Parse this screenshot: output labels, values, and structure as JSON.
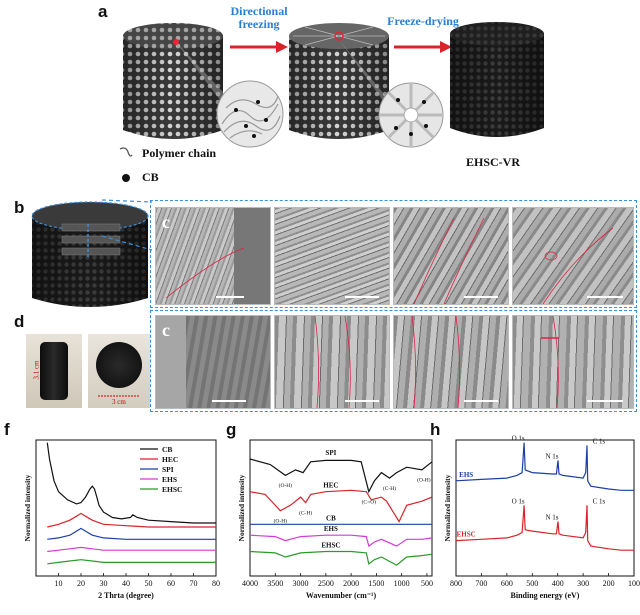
{
  "panels": {
    "a": "a",
    "b": "b",
    "c_top": "c",
    "c_bottom": "c",
    "d": "d",
    "f": "f",
    "g": "g",
    "h": "h"
  },
  "panel_a": {
    "arrow1": [
      "Directional",
      "freezing"
    ],
    "arrow2": "Freeze-drying",
    "legend_polymer": "Polymer chain",
    "legend_cb": "CB",
    "product": "EHSC-VR"
  },
  "panel_d": {
    "height_dim": "3.1 cm",
    "width_dim": "3 cm"
  },
  "colors": {
    "arrow": "#d9232a",
    "arrow_text": "#2a7fd0",
    "dash_box": "#3a8fd8"
  },
  "chart_data": [
    {
      "panel": "f",
      "type": "line",
      "xlabel": "2 Thrta (degree)",
      "ylabel": "Normalized intensity",
      "xlim": [
        0,
        80
      ],
      "xticks": [
        10,
        20,
        30,
        40,
        50,
        60,
        70,
        80
      ],
      "series": [
        {
          "name": "CB",
          "color": "#111111",
          "x": [
            5,
            6,
            8,
            10,
            14,
            18,
            20,
            22,
            24,
            25,
            26,
            27,
            28,
            30,
            34,
            38,
            42,
            43,
            45,
            50,
            60,
            70,
            80
          ],
          "y": [
            0.98,
            0.86,
            0.7,
            0.62,
            0.56,
            0.53,
            0.54,
            0.58,
            0.64,
            0.66,
            0.64,
            0.58,
            0.52,
            0.47,
            0.43,
            0.42,
            0.43,
            0.45,
            0.43,
            0.41,
            0.4,
            0.39,
            0.39
          ]
        },
        {
          "name": "HEC",
          "color": "#d9232a",
          "x": [
            5,
            10,
            15,
            18,
            20,
            22,
            25,
            30,
            40,
            50,
            60,
            70,
            80
          ],
          "y": [
            0.36,
            0.38,
            0.41,
            0.44,
            0.46,
            0.44,
            0.41,
            0.38,
            0.37,
            0.36,
            0.36,
            0.36,
            0.36
          ]
        },
        {
          "name": "SPI",
          "color": "#1b3fa6",
          "x": [
            5,
            10,
            15,
            18,
            20,
            22,
            25,
            30,
            40,
            50,
            60,
            70,
            80
          ],
          "y": [
            0.27,
            0.28,
            0.3,
            0.33,
            0.35,
            0.33,
            0.3,
            0.28,
            0.27,
            0.27,
            0.27,
            0.27,
            0.27
          ]
        },
        {
          "name": "EHS",
          "color": "#d63ad6",
          "x": [
            5,
            10,
            15,
            20,
            25,
            30,
            40,
            50,
            60,
            70,
            80
          ],
          "y": [
            0.18,
            0.19,
            0.2,
            0.21,
            0.2,
            0.19,
            0.19,
            0.19,
            0.19,
            0.19,
            0.19
          ]
        },
        {
          "name": "EHSC",
          "color": "#2a9a2a",
          "x": [
            5,
            10,
            15,
            20,
            25,
            30,
            40,
            50,
            60,
            70,
            80
          ],
          "y": [
            0.09,
            0.1,
            0.11,
            0.12,
            0.11,
            0.1,
            0.1,
            0.1,
            0.1,
            0.1,
            0.1
          ]
        }
      ]
    },
    {
      "panel": "g",
      "type": "line",
      "xlabel": "Wavenumber (cm⁻¹)",
      "ylabel": "Normalized intensity",
      "xlim": [
        4000,
        400
      ],
      "xticks": [
        4000,
        3500,
        3000,
        2500,
        2000,
        1500,
        1000,
        500
      ],
      "annotations": {
        "SPI": [
          "(O-H)",
          "(C=O)",
          "(C-H)",
          "(O-H)"
        ],
        "HEC": [
          "(O-H)",
          "(C-H)"
        ]
      },
      "series": [
        {
          "name": "SPI",
          "color": "#111111",
          "x": [
            4000,
            3600,
            3300,
            3100,
            2950,
            2800,
            2500,
            2000,
            1800,
            1650,
            1540,
            1400,
            1240,
            1100,
            900,
            600,
            400
          ],
          "y": [
            0.86,
            0.82,
            0.74,
            0.78,
            0.76,
            0.84,
            0.85,
            0.85,
            0.84,
            0.62,
            0.7,
            0.76,
            0.72,
            0.76,
            0.8,
            0.78,
            0.84
          ]
        },
        {
          "name": "HEC",
          "color": "#d9232a",
          "x": [
            4000,
            3700,
            3400,
            3200,
            3000,
            2900,
            2800,
            2500,
            2000,
            1700,
            1600,
            1400,
            1300,
            1050,
            900,
            600,
            400
          ],
          "y": [
            0.62,
            0.6,
            0.48,
            0.52,
            0.58,
            0.54,
            0.6,
            0.62,
            0.63,
            0.62,
            0.56,
            0.58,
            0.55,
            0.4,
            0.52,
            0.55,
            0.58
          ]
        },
        {
          "name": "CB",
          "color": "#1b3fa6",
          "x": [
            4000,
            3000,
            2000,
            1000,
            400
          ],
          "y": [
            0.38,
            0.38,
            0.38,
            0.38,
            0.38
          ]
        },
        {
          "name": "EHS",
          "color": "#d63ad6",
          "x": [
            4000,
            3500,
            3300,
            3000,
            2500,
            2000,
            1700,
            1650,
            1540,
            1400,
            1100,
            900,
            600,
            400
          ],
          "y": [
            0.3,
            0.29,
            0.26,
            0.29,
            0.3,
            0.3,
            0.29,
            0.22,
            0.25,
            0.27,
            0.22,
            0.27,
            0.27,
            0.28
          ]
        },
        {
          "name": "EHSC",
          "color": "#2a9a2a",
          "x": [
            4000,
            3500,
            3300,
            3000,
            2500,
            2000,
            1700,
            1650,
            1540,
            1400,
            1100,
            900,
            600,
            400
          ],
          "y": [
            0.18,
            0.17,
            0.14,
            0.17,
            0.18,
            0.18,
            0.17,
            0.09,
            0.12,
            0.14,
            0.08,
            0.14,
            0.15,
            0.16
          ]
        }
      ]
    },
    {
      "panel": "h",
      "type": "line",
      "xlabel": "Binding energy (eV)",
      "ylabel": "Normalized intensity",
      "xlim": [
        800,
        100
      ],
      "xticks": [
        800,
        700,
        600,
        500,
        400,
        300,
        200,
        100
      ],
      "peaks": {
        "EHS": [
          "O 1s",
          "N 1s",
          "C 1s"
        ],
        "EHSC": [
          "O 1s",
          "N 1s",
          "C 1s"
        ]
      },
      "series": [
        {
          "name": "EHS",
          "color": "#1b3fa6",
          "x": [
            800,
            700,
            600,
            560,
            540,
            532,
            528,
            500,
            420,
            405,
            399,
            395,
            380,
            300,
            290,
            285,
            282,
            270,
            200,
            150,
            100
          ],
          "y": [
            0.7,
            0.71,
            0.72,
            0.74,
            0.76,
            0.98,
            0.78,
            0.76,
            0.75,
            0.75,
            0.85,
            0.75,
            0.74,
            0.72,
            0.76,
            0.96,
            0.7,
            0.66,
            0.64,
            0.63,
            0.63
          ]
        },
        {
          "name": "EHSC",
          "color": "#d9232a",
          "x": [
            800,
            700,
            600,
            560,
            540,
            532,
            528,
            500,
            420,
            405,
            399,
            395,
            380,
            300,
            290,
            285,
            282,
            270,
            200,
            150,
            100
          ],
          "y": [
            0.26,
            0.27,
            0.28,
            0.3,
            0.32,
            0.52,
            0.34,
            0.33,
            0.31,
            0.31,
            0.4,
            0.31,
            0.3,
            0.28,
            0.32,
            0.52,
            0.26,
            0.22,
            0.2,
            0.19,
            0.19
          ]
        }
      ]
    }
  ]
}
